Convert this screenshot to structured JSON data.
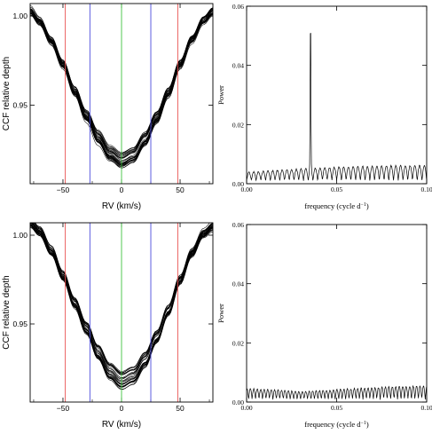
{
  "chart_data": [
    {
      "id": "ccf_top",
      "type": "line",
      "xlabel": "RV (km/s)",
      "ylabel": "CCF relative depth",
      "xlim": [
        -78,
        78
      ],
      "ylim": [
        0.906,
        1.007
      ],
      "xticks": [
        -50,
        0,
        50
      ],
      "yticks": [
        0.95,
        1.0
      ],
      "xtick_labels": [
        "−50",
        "0",
        "50"
      ],
      "ytick_labels": [
        "0.95",
        "1.00"
      ],
      "grid": false,
      "n_overplotted_curves": 30,
      "profile": {
        "rv": [
          -78,
          -70,
          -60,
          -50,
          -40,
          -30,
          -20,
          -10,
          0,
          10,
          20,
          30,
          40,
          50,
          60,
          70,
          78
        ],
        "depth": [
          1.003,
          0.997,
          0.986,
          0.973,
          0.958,
          0.944,
          0.932,
          0.923,
          0.919,
          0.922,
          0.931,
          0.943,
          0.957,
          0.973,
          0.987,
          0.998,
          1.003
        ]
      },
      "vertical_lines": [
        {
          "x": -48,
          "color": "#e8504f"
        },
        {
          "x": -27,
          "color": "#4b4bdc"
        },
        {
          "x": 0,
          "color": "#3ec43e"
        },
        {
          "x": 25,
          "color": "#4b4bdc"
        },
        {
          "x": 48,
          "color": "#e8504f"
        }
      ]
    },
    {
      "id": "power_top",
      "type": "line",
      "xlabel": "frequency (cycle d",
      "xlabel_sup": "−1",
      "xlabel_tail": ")",
      "ylabel": "Power",
      "xlim": [
        0,
        0.1
      ],
      "ylim": [
        0,
        0.06
      ],
      "xticks": [
        0,
        0.05,
        0.1
      ],
      "yticks": [
        0,
        0.02,
        0.04,
        0.06
      ],
      "xtick_labels": [
        "0.00",
        "0.05",
        "0.10"
      ],
      "ytick_labels": [
        "0.00",
        "0.02",
        "0.04",
        "0.06"
      ],
      "grid": false,
      "peak": {
        "x": 0.0355,
        "y": 0.055
      },
      "baseline": {
        "mean": 0.0042,
        "amplitude": 0.0028,
        "n_oscillations": 38,
        "phase": 0.0
      }
    },
    {
      "id": "ccf_bottom",
      "type": "line",
      "xlabel": "RV (km/s)",
      "ylabel": "CCF relative depth",
      "xlim": [
        -78,
        78
      ],
      "ylim": [
        0.906,
        1.007
      ],
      "xticks": [
        -50,
        0,
        50
      ],
      "yticks": [
        0.95,
        1.0
      ],
      "xtick_labels": [
        "−50",
        "0",
        "50"
      ],
      "ytick_labels": [
        "0.95",
        "1.00"
      ],
      "grid": false,
      "n_overplotted_curves": 30,
      "profile": {
        "rv": [
          -78,
          -70,
          -60,
          -50,
          -40,
          -30,
          -20,
          -10,
          0,
          10,
          20,
          30,
          40,
          50,
          60,
          70,
          78
        ],
        "depth": [
          1.007,
          1.002,
          0.991,
          0.977,
          0.962,
          0.948,
          0.934,
          0.923,
          0.918,
          0.921,
          0.93,
          0.943,
          0.958,
          0.975,
          0.99,
          1.001,
          1.005
        ]
      },
      "vertical_lines": [
        {
          "x": -48,
          "color": "#e8504f"
        },
        {
          "x": -27,
          "color": "#4b4bdc"
        },
        {
          "x": 0,
          "color": "#3ec43e"
        },
        {
          "x": 25,
          "color": "#4b4bdc"
        },
        {
          "x": 48,
          "color": "#e8504f"
        }
      ]
    },
    {
      "id": "power_bottom",
      "type": "line",
      "xlabel": "frequency (cycle d",
      "xlabel_sup": "−1",
      "xlabel_tail": ")",
      "ylabel": "Power",
      "xlim": [
        0,
        0.1
      ],
      "ylim": [
        0,
        0.06
      ],
      "xticks": [
        0,
        0.05,
        0.1
      ],
      "yticks": [
        0,
        0.02,
        0.04,
        0.06
      ],
      "xtick_labels": [
        "0.00",
        "0.05",
        "0.10"
      ],
      "ytick_labels": [
        "0.00",
        "0.02",
        "0.04",
        "0.06"
      ],
      "grid": false,
      "peak": null,
      "baseline": {
        "mean": 0.0038,
        "amplitude": 0.0026,
        "n_oscillations": 52,
        "phase": 1.3
      }
    }
  ]
}
